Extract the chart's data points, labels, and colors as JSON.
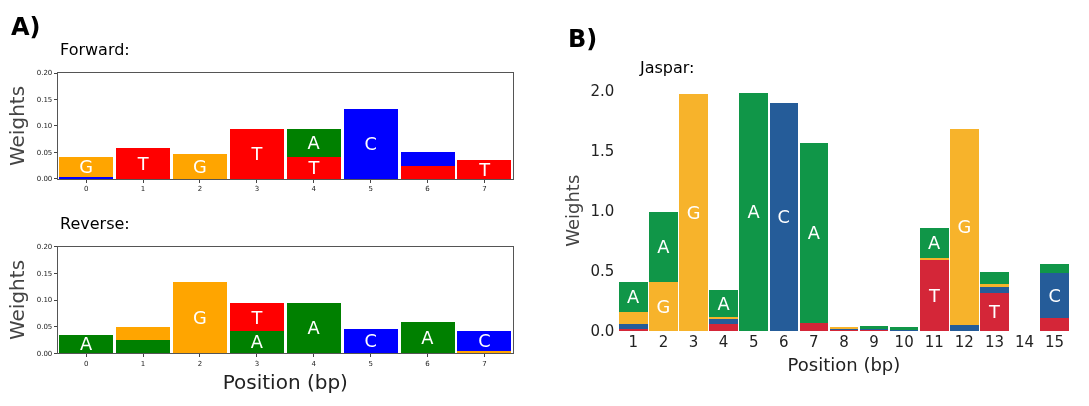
{
  "chart_data": [
    {
      "type": "bar",
      "stacked": true,
      "title": "Forward:",
      "annotations": [
        "A)"
      ],
      "ylabel": "Weights",
      "categories": [
        "0",
        "1",
        "2",
        "3",
        "4",
        "5",
        "6",
        "7"
      ],
      "ylim": [
        0,
        0.2
      ],
      "yticks": [
        {
          "value": 0,
          "label": "0.00"
        },
        {
          "value": 0.05,
          "label": "0.05"
        },
        {
          "value": 0.1,
          "label": "0.10"
        },
        {
          "value": 0.15,
          "label": "0.15"
        },
        {
          "value": 0.2,
          "label": "0.20"
        }
      ],
      "series": [
        {
          "name": "T",
          "color": "#ff0000",
          "values": [
            null,
            0.058,
            null,
            0.094,
            0.042,
            null,
            0.024,
            0.036
          ]
        },
        {
          "name": "C",
          "color": "#0000ff",
          "values": [
            0.004,
            null,
            null,
            null,
            null,
            0.133,
            0.026,
            null
          ]
        },
        {
          "name": "G",
          "color": "#ffa500",
          "values": [
            0.037,
            null,
            0.047,
            null,
            null,
            null,
            null,
            null
          ]
        },
        {
          "name": "A",
          "color": "#008000",
          "values": [
            null,
            null,
            null,
            null,
            0.052,
            null,
            null,
            null
          ]
        }
      ]
    },
    {
      "type": "bar",
      "stacked": true,
      "title": "Reverse:",
      "xlabel": "Position (bp)",
      "ylabel": "Weights",
      "categories": [
        "0",
        "1",
        "2",
        "3",
        "4",
        "5",
        "6",
        "7"
      ],
      "ylim": [
        0,
        0.2
      ],
      "yticks": [
        {
          "value": 0,
          "label": "0.00"
        },
        {
          "value": 0.05,
          "label": "0.05"
        },
        {
          "value": 0.1,
          "label": "0.10"
        },
        {
          "value": 0.15,
          "label": "0.15"
        },
        {
          "value": 0.2,
          "label": "0.20"
        }
      ],
      "series": [
        {
          "name": "A",
          "color": "#008000",
          "values": [
            0.035,
            0.025,
            null,
            0.041,
            0.094,
            null,
            0.058,
            null
          ]
        },
        {
          "name": "G",
          "color": "#ffa500",
          "values": [
            null,
            0.025,
            0.133,
            null,
            null,
            null,
            null,
            0.004
          ]
        },
        {
          "name": "T",
          "color": "#ff0000",
          "values": [
            null,
            null,
            null,
            0.053,
            null,
            null,
            null,
            null
          ]
        },
        {
          "name": "C",
          "color": "#0000ff",
          "values": [
            null,
            null,
            null,
            null,
            null,
            0.046,
            null,
            0.037
          ]
        }
      ]
    },
    {
      "type": "bar",
      "stacked": true,
      "title": "Jaspar:",
      "annotations": [
        "B)"
      ],
      "xlabel": "Position (bp)",
      "ylabel": "Weights",
      "x": [
        1,
        2,
        3,
        4,
        5,
        6,
        7,
        8,
        9,
        10,
        11,
        12,
        13,
        14,
        15
      ],
      "xlim": [
        0.4,
        15.6
      ],
      "xticks": [
        1,
        2,
        3,
        4,
        5,
        6,
        7,
        8,
        9,
        10,
        11,
        12,
        13,
        14,
        15
      ],
      "ylim": [
        0,
        2
      ],
      "yticks": [
        {
          "value": 0,
          "label": "0.0"
        },
        {
          "value": 0.5,
          "label": "0.5"
        },
        {
          "value": 1,
          "label": "1.0"
        },
        {
          "value": 1.5,
          "label": "1.5"
        },
        {
          "value": 2,
          "label": "2.0"
        }
      ],
      "series": [
        {
          "name": "T",
          "color": "#d42638",
          "values": [
            0.02,
            null,
            null,
            0.06,
            null,
            null,
            0.07,
            0.01,
            0.01,
            null,
            0.59,
            null,
            0.32,
            null,
            0.11
          ]
        },
        {
          "name": "C",
          "color": "#255c99",
          "values": [
            0.04,
            null,
            null,
            0.04,
            null,
            1.9,
            null,
            0.01,
            0.01,
            0.01,
            null,
            0.05,
            0.05,
            null,
            0.37
          ]
        },
        {
          "name": "G",
          "color": "#f7b32b",
          "values": [
            0.1,
            0.41,
            1.97,
            0.02,
            null,
            null,
            null,
            0.01,
            null,
            null,
            0.02,
            1.63,
            0.02,
            null,
            null
          ]
        },
        {
          "name": "A",
          "color": "#109648",
          "values": [
            0.25,
            0.58,
            null,
            0.22,
            1.98,
            null,
            1.49,
            null,
            0.02,
            0.02,
            0.25,
            null,
            0.1,
            null,
            0.08
          ]
        }
      ]
    }
  ]
}
